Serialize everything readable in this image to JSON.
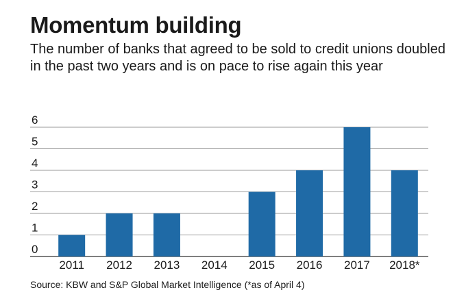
{
  "chart_data": {
    "type": "bar",
    "title": "Momentum building",
    "subtitle": "The number of banks that agreed to be sold to credit unions doubled in the past two years and is on pace to rise again this year",
    "categories": [
      "2011",
      "2012",
      "2013",
      "2014",
      "2015",
      "2016",
      "2017",
      "2018*"
    ],
    "values": [
      1,
      2,
      2,
      0,
      3,
      4,
      6,
      4
    ],
    "ylim": [
      0,
      6
    ],
    "yticks": [
      "0",
      "1",
      "2",
      "3",
      "4",
      "5",
      "6"
    ],
    "xlabel": "",
    "ylabel": "",
    "grid": true,
    "bar_color": "#1f6aa6",
    "source": "Source: KBW and S&P Global Market Intelligence (*as of April 4)"
  }
}
